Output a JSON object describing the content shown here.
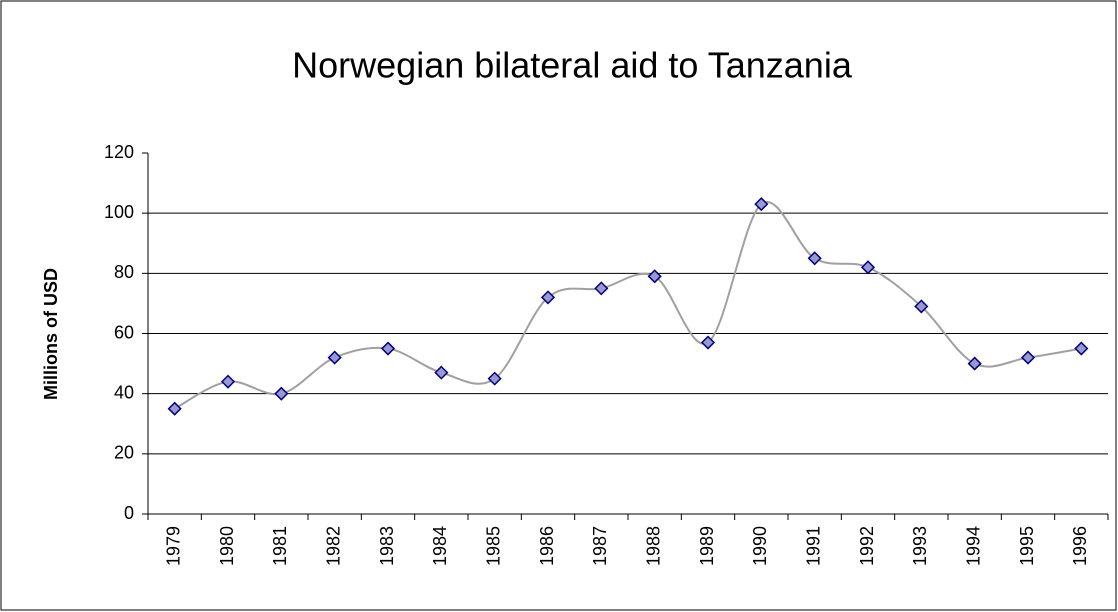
{
  "chart_data": {
    "type": "line",
    "title": "Norwegian bilateral aid to Tanzania",
    "ylabel": "Millions of USD",
    "categories": [
      "1979",
      "1980",
      "1981",
      "1982",
      "1983",
      "1984",
      "1985",
      "1986",
      "1987",
      "1988",
      "1989",
      "1990",
      "1991",
      "1992",
      "1993",
      "1994",
      "1995",
      "1996"
    ],
    "series": [
      {
        "name": "Norwegian bilateral aid",
        "color": "#a0a0a0",
        "marker_fill": "#9999cc",
        "marker_stroke": "#000080",
        "values": [
          35,
          44,
          40,
          52,
          55,
          47,
          45,
          72,
          75,
          79,
          57,
          103,
          85,
          82,
          69,
          50,
          52,
          55
        ]
      }
    ],
    "ylim": [
      0,
      120
    ],
    "yticks": [
      0,
      20,
      40,
      60,
      80,
      100,
      120
    ],
    "grid": true,
    "smooth": true
  }
}
